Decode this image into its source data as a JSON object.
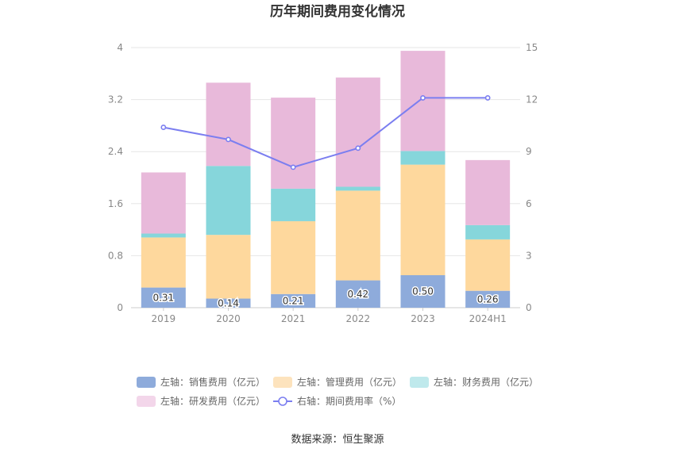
{
  "chart_data": {
    "type": "bar",
    "title": "历年期间费用变化情况",
    "categories": [
      "2019",
      "2020",
      "2021",
      "2022",
      "2023",
      "2024H1"
    ],
    "series": [
      {
        "name": "左轴：销售费用（亿元）",
        "axis": "left",
        "type": "bar",
        "color": "#8eabdb",
        "values": [
          0.31,
          0.14,
          0.21,
          0.42,
          0.5,
          0.26
        ],
        "show_labels": true
      },
      {
        "name": "左轴：管理费用（亿元）",
        "axis": "left",
        "type": "bar",
        "color": "#fed89d",
        "values": [
          0.77,
          0.98,
          1.12,
          1.38,
          1.7,
          0.79
        ]
      },
      {
        "name": "左轴：财务费用（亿元）",
        "axis": "left",
        "type": "bar",
        "color": "#86d6db",
        "values": [
          0.06,
          1.06,
          0.5,
          0.06,
          0.21,
          0.22
        ]
      },
      {
        "name": "左轴：研发费用（亿元）",
        "axis": "left",
        "type": "bar",
        "color": "#e8b9da",
        "values": [
          0.94,
          1.28,
          1.4,
          1.68,
          1.54,
          1.0
        ]
      },
      {
        "name": "右轴：期间费用率（%）",
        "axis": "right",
        "type": "line",
        "color": "#7b7ef0",
        "values": [
          10.4,
          9.7,
          8.1,
          9.2,
          12.1,
          12.1
        ]
      }
    ],
    "y_left": {
      "min": 0,
      "max": 4,
      "ticks": [
        "0",
        "0.8",
        "1.6",
        "2.4",
        "3.2",
        "4"
      ]
    },
    "y_right": {
      "min": 0,
      "max": 15,
      "ticks": [
        "0",
        "3",
        "6",
        "9",
        "12",
        "15"
      ]
    },
    "grid": true,
    "legend_position": "bottom",
    "legend_colors": [
      "#8eabdb",
      "#fde3bd",
      "#bfe9ec",
      "#f3d6ea",
      "#7b7ef0"
    ],
    "source": "数据来源：恒生聚源"
  }
}
